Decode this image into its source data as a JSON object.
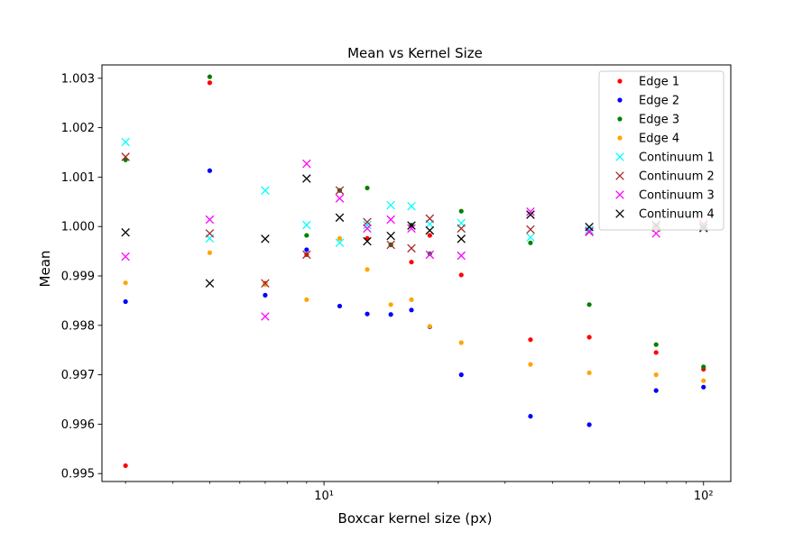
{
  "chart_data": {
    "type": "scatter",
    "title": "Mean vs Kernel Size",
    "xlabel": "Boxcar kernel size (px)",
    "ylabel": "Mean",
    "x_scale": "log",
    "xlim": [
      2.6,
      118
    ],
    "ylim": [
      0.99484,
      1.00327
    ],
    "x_major_ticks": [
      10,
      100
    ],
    "x_major_tick_labels": [
      "10¹",
      "10²"
    ],
    "x_minor_ticks": [
      3,
      4,
      5,
      6,
      7,
      8,
      9,
      20,
      30,
      40,
      50,
      60,
      70,
      80,
      90
    ],
    "y_ticks": [
      0.995,
      0.996,
      0.997,
      0.998,
      0.999,
      1.0,
      1.001,
      1.002,
      1.003
    ],
    "y_tick_labels": [
      "0.995",
      "0.996",
      "0.997",
      "0.998",
      "0.999",
      "1.000",
      "1.001",
      "1.002",
      "1.003"
    ],
    "grid": false,
    "legend_position": "top-right",
    "x": [
      3,
      5,
      7,
      9,
      11,
      13,
      15,
      17,
      19,
      23,
      35,
      50,
      75,
      100
    ],
    "series": [
      {
        "name": "Edge 1",
        "color": "#ff0000",
        "marker": "dot",
        "values": [
          0.99516,
          1.00291,
          0.99885,
          0.99943,
          1.00073,
          0.99976,
          0.99963,
          0.99928,
          0.99982,
          0.99902,
          0.99771,
          0.99776,
          0.99745,
          0.99711
        ]
      },
      {
        "name": "Edge 2",
        "color": "#0000ff",
        "marker": "dot",
        "values": [
          0.99848,
          1.00113,
          0.99861,
          0.99953,
          0.99839,
          0.99823,
          0.99822,
          0.99831,
          0.99797,
          0.997,
          0.99616,
          0.99599,
          0.99668,
          0.99675
        ]
      },
      {
        "name": "Edge 3",
        "color": "#008000",
        "marker": "dot",
        "values": [
          1.00135,
          1.00303,
          0.99883,
          0.99982,
          1.00073,
          1.00078,
          0.99963,
          1.00003,
          0.99945,
          1.00031,
          0.99967,
          0.99842,
          0.99761,
          0.99716
        ]
      },
      {
        "name": "Edge 4",
        "color": "#ffa500",
        "marker": "dot",
        "values": [
          0.99886,
          0.99947,
          0.99883,
          0.99852,
          0.99976,
          0.99913,
          0.99842,
          0.99852,
          0.99798,
          0.99765,
          0.99721,
          0.99704,
          0.997,
          0.99688
        ]
      },
      {
        "name": "Continuum 1",
        "color": "#00ffff",
        "marker": "x",
        "values": [
          1.00171,
          0.99976,
          1.00073,
          1.00003,
          0.99967,
          1.00003,
          1.00043,
          1.00041,
          1.00005,
          1.00007,
          0.99978,
          0.99993,
          1.00003,
          0.99999
        ]
      },
      {
        "name": "Continuum 2",
        "color": "#a52a2a",
        "marker": "x",
        "values": [
          1.00141,
          0.99986,
          0.99885,
          0.99943,
          1.00073,
          1.00009,
          0.99963,
          0.99956,
          1.00016,
          0.99996,
          0.99994,
          0.99989,
          0.99998,
          1.00002
        ]
      },
      {
        "name": "Continuum 3",
        "color": "#ff00ff",
        "marker": "x",
        "values": [
          0.99939,
          1.00014,
          0.99818,
          1.00127,
          1.00057,
          0.99996,
          1.00014,
          0.99996,
          0.99943,
          0.99941,
          1.0003,
          0.9999,
          0.99986,
          1.00005
        ]
      },
      {
        "name": "Continuum 4",
        "color": "#000000",
        "marker": "x",
        "values": [
          0.99988,
          0.99885,
          0.99975,
          1.00097,
          1.00018,
          0.9997,
          0.99981,
          1.00002,
          0.99992,
          0.99975,
          1.00024,
          0.99999,
          1.00003,
          0.99997
        ]
      }
    ]
  }
}
